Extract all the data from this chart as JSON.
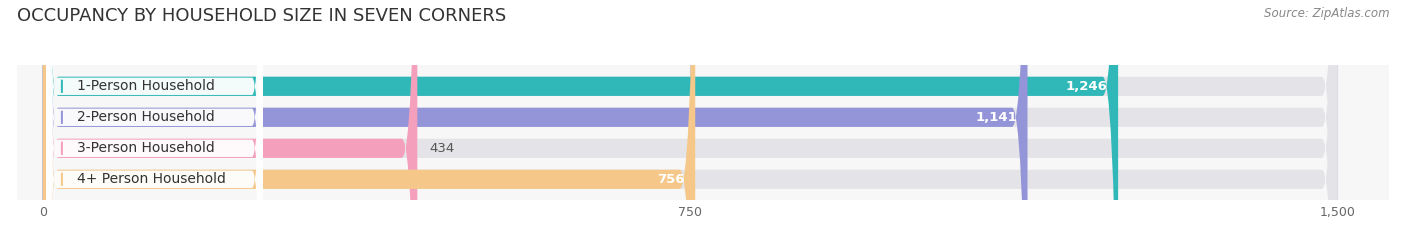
{
  "title": "OCCUPANCY BY HOUSEHOLD SIZE IN SEVEN CORNERS",
  "source": "Source: ZipAtlas.com",
  "categories": [
    "1-Person Household",
    "2-Person Household",
    "3-Person Household",
    "4+ Person Household"
  ],
  "values": [
    1246,
    1141,
    434,
    756
  ],
  "bar_colors": [
    "#30b8b8",
    "#9494d8",
    "#f4a0bc",
    "#f5c88a"
  ],
  "xlim": [
    -30,
    1560
  ],
  "xdata_max": 1500,
  "xticks": [
    0,
    750,
    1500
  ],
  "bg_color": "#ffffff",
  "plot_bg_color": "#f7f7f7",
  "bar_bg_color": "#e4e4e8",
  "bar_outline_color": "#d0d0d8",
  "title_fontsize": 13,
  "label_fontsize": 10,
  "value_fontsize": 9.5,
  "source_fontsize": 8.5
}
